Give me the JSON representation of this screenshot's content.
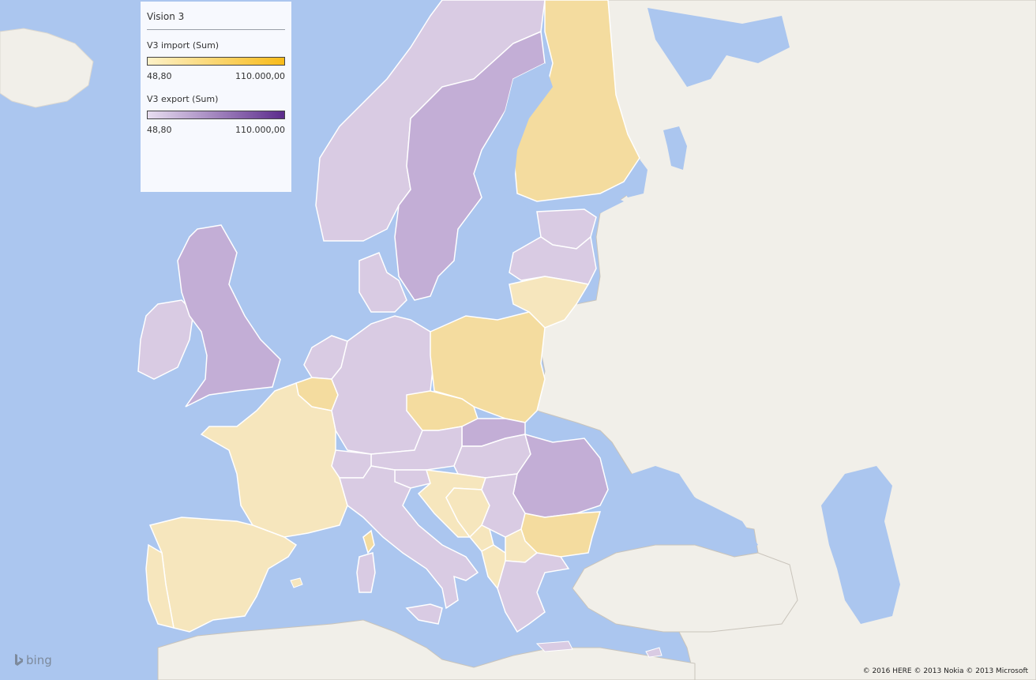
{
  "legend": {
    "title": "Vision 3",
    "import": {
      "label": "V3 import (Sum)",
      "min": "48,80",
      "max": "110.000,00",
      "color_low": "#fdf1c8",
      "color_high": "#f8bb1a"
    },
    "export": {
      "label": "V3 export (Sum)",
      "min": "48,80",
      "max": "110.000,00",
      "color_low": "#e8def0",
      "color_high": "#5b2b8c"
    }
  },
  "colors": {
    "water": "#abc6ef",
    "land_neutral": "#f1efe9",
    "import_light": "#f6e6bd",
    "import_mid": "#f4dc9f",
    "export_light": "#d9cbe3",
    "export_mid": "#c3aed6",
    "border": "#ffffff"
  },
  "regions": [
    {
      "name": "Norway",
      "measure": "export",
      "shade": "export_light"
    },
    {
      "name": "Sweden",
      "measure": "export",
      "shade": "export_mid"
    },
    {
      "name": "Finland",
      "measure": "import",
      "shade": "import_mid"
    },
    {
      "name": "United Kingdom",
      "measure": "export",
      "shade": "export_mid"
    },
    {
      "name": "Ireland",
      "measure": "export",
      "shade": "export_light"
    },
    {
      "name": "Denmark",
      "measure": "export",
      "shade": "export_light"
    },
    {
      "name": "Estonia",
      "measure": "export",
      "shade": "export_light"
    },
    {
      "name": "Latvia",
      "measure": "export",
      "shade": "export_light"
    },
    {
      "name": "Lithuania",
      "measure": "import",
      "shade": "import_light"
    },
    {
      "name": "Poland",
      "measure": "import",
      "shade": "import_mid"
    },
    {
      "name": "Germany",
      "measure": "export",
      "shade": "export_light"
    },
    {
      "name": "Netherlands",
      "measure": "export",
      "shade": "export_light"
    },
    {
      "name": "Belgium",
      "measure": "import",
      "shade": "import_mid"
    },
    {
      "name": "France",
      "measure": "import",
      "shade": "import_light"
    },
    {
      "name": "Spain",
      "measure": "import",
      "shade": "import_light"
    },
    {
      "name": "Portugal",
      "measure": "import",
      "shade": "import_light"
    },
    {
      "name": "Czech Republic",
      "measure": "import",
      "shade": "import_mid"
    },
    {
      "name": "Slovakia",
      "measure": "export",
      "shade": "export_mid"
    },
    {
      "name": "Austria",
      "measure": "export",
      "shade": "export_light"
    },
    {
      "name": "Switzerland",
      "measure": "export",
      "shade": "export_light"
    },
    {
      "name": "Italy",
      "measure": "export",
      "shade": "export_light"
    },
    {
      "name": "Slovenia",
      "measure": "export",
      "shade": "export_light"
    },
    {
      "name": "Croatia",
      "measure": "import",
      "shade": "import_light"
    },
    {
      "name": "Bosnia and Herzegovina",
      "measure": "import",
      "shade": "import_light"
    },
    {
      "name": "Hungary",
      "measure": "export",
      "shade": "export_light"
    },
    {
      "name": "Romania",
      "measure": "export",
      "shade": "export_mid"
    },
    {
      "name": "Serbia",
      "measure": "export",
      "shade": "export_light"
    },
    {
      "name": "Bulgaria",
      "measure": "import",
      "shade": "import_mid"
    },
    {
      "name": "Montenegro",
      "measure": "import",
      "shade": "import_light"
    },
    {
      "name": "Macedonia",
      "measure": "import",
      "shade": "import_light"
    },
    {
      "name": "Albania",
      "measure": "import",
      "shade": "import_light"
    },
    {
      "name": "Greece",
      "measure": "export",
      "shade": "export_light"
    },
    {
      "name": "Corsica",
      "measure": "import",
      "shade": "import_mid"
    },
    {
      "name": "Sardinia",
      "measure": "export",
      "shade": "export_light"
    },
    {
      "name": "Sicily",
      "measure": "export",
      "shade": "export_light"
    }
  ],
  "logo": {
    "text": "bing"
  },
  "copyright": "© 2016 HERE  © 2013 Nokia  © 2013 Microsoft"
}
